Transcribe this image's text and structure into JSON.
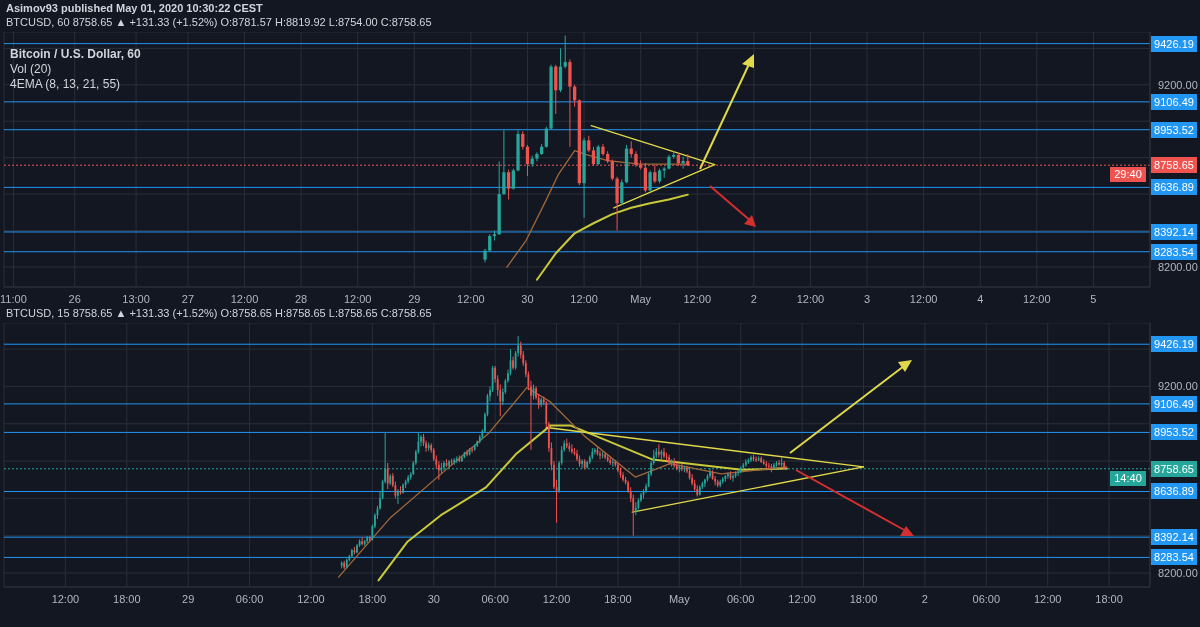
{
  "chart_data": [
    {
      "type": "candlestick",
      "title": "Asimov93 published May 01, 2020 10:30:22 CEST",
      "subtitle": "BTCUSD, 60 8758.65 ▲ +131.33 (+1.52%) O:8781.57 H:8819.92 L:8754.00 C:8758.65",
      "annotations": [
        "Bitcoin / U.S. Dollar, 60",
        "Vol (20)",
        "4EMA (8, 13, 21, 55)",
        "29:40"
      ],
      "x": [
        "2020-04-29T15:00",
        "2020-04-29T16:00",
        "2020-04-29T17:00",
        "2020-04-29T18:00",
        "2020-04-29T19:00",
        "2020-04-29T20:00",
        "2020-04-29T21:00",
        "2020-04-29T22:00",
        "2020-04-29T23:00",
        "2020-04-30T00:00",
        "2020-04-30T01:00",
        "2020-04-30T02:00",
        "2020-04-30T03:00",
        "2020-04-30T04:00",
        "2020-04-30T05:00",
        "2020-04-30T06:00",
        "2020-04-30T07:00",
        "2020-04-30T08:00",
        "2020-04-30T09:00",
        "2020-04-30T10:00",
        "2020-04-30T11:00",
        "2020-04-30T12:00",
        "2020-04-30T13:00",
        "2020-04-30T14:00",
        "2020-04-30T15:00",
        "2020-04-30T16:00",
        "2020-04-30T17:00",
        "2020-04-30T18:00",
        "2020-04-30T19:00",
        "2020-04-30T20:00",
        "2020-04-30T21:00",
        "2020-04-30T22:00",
        "2020-04-30T23:00",
        "2020-05-01T00:00",
        "2020-05-01T01:00",
        "2020-05-01T02:00",
        "2020-05-01T03:00",
        "2020-05-01T04:00",
        "2020-05-01T05:00",
        "2020-05-01T06:00",
        "2020-05-01T07:00",
        "2020-05-01T08:00",
        "2020-05-01T09:00",
        "2020-05-01T10:00"
      ],
      "ohlc": [
        [
          8240,
          8300,
          8225,
          8290
        ],
        [
          8290,
          8380,
          8285,
          8370
        ],
        [
          8370,
          8400,
          8345,
          8380
        ],
        [
          8380,
          8780,
          8375,
          8600
        ],
        [
          8600,
          8950,
          8595,
          8720
        ],
        [
          8720,
          8735,
          8570,
          8630
        ],
        [
          8630,
          8740,
          8625,
          8730
        ],
        [
          8730,
          8950,
          8725,
          8930
        ],
        [
          8930,
          8945,
          8845,
          8860
        ],
        [
          8860,
          8870,
          8700,
          8765
        ],
        [
          8765,
          8812,
          8750,
          8795
        ],
        [
          8795,
          8830,
          8780,
          8820
        ],
        [
          8820,
          8875,
          8815,
          8860
        ],
        [
          8860,
          8970,
          8855,
          8960
        ],
        [
          8960,
          9310,
          8955,
          9300
        ],
        [
          9300,
          9310,
          9040,
          9170
        ],
        [
          9170,
          9400,
          9160,
          9300
        ],
        [
          9300,
          9470,
          9290,
          9325
        ],
        [
          9325,
          9340,
          8860,
          9190
        ],
        [
          9190,
          9200,
          9080,
          9115
        ],
        [
          9115,
          9120,
          8650,
          8660
        ],
        [
          8660,
          8910,
          8470,
          8895
        ],
        [
          8895,
          8920,
          8830,
          8840
        ],
        [
          8840,
          8860,
          8755,
          8765
        ],
        [
          8765,
          8870,
          8760,
          8860
        ],
        [
          8860,
          8875,
          8810,
          8820
        ],
        [
          8820,
          8835,
          8770,
          8780
        ],
        [
          8780,
          8790,
          8675,
          8685
        ],
        [
          8685,
          8695,
          8400,
          8550
        ],
        [
          8550,
          8680,
          8540,
          8665
        ],
        [
          8665,
          8870,
          8660,
          8850
        ],
        [
          8850,
          8890,
          8800,
          8820
        ],
        [
          8820,
          8835,
          8750,
          8760
        ],
        [
          8760,
          8785,
          8735,
          8745
        ],
        [
          8745,
          8770,
          8610,
          8620
        ],
        [
          8620,
          8730,
          8615,
          8720
        ],
        [
          8720,
          8760,
          8660,
          8670
        ],
        [
          8670,
          8740,
          8660,
          8730
        ],
        [
          8730,
          8750,
          8690,
          8740
        ],
        [
          8740,
          8815,
          8735,
          8805
        ],
        [
          8805,
          8835,
          8795,
          8815
        ],
        [
          8815,
          8825,
          8755,
          8770
        ],
        [
          8770,
          8805,
          8740,
          8781.57
        ],
        [
          8781.57,
          8819.92,
          8754,
          8758.65
        ]
      ],
      "series": [
        {
          "type": "line",
          "color": "#c9c93a",
          "x": [
            "2020-04-30T02:00",
            "2020-04-30T06:00",
            "2020-04-30T10:00",
            "2020-04-30T14:00",
            "2020-04-30T18:00",
            "2020-04-30T22:00",
            "2020-05-01T02:00",
            "2020-05-01T06:00",
            "2020-05-01T10:00"
          ],
          "values": [
            8130,
            8275,
            8385,
            8440,
            8490,
            8525,
            8550,
            8570,
            8597
          ]
        },
        {
          "type": "line",
          "color": "#a0683a",
          "x": [
            "2020-04-29T19:36",
            "2020-04-29T23:42",
            "2020-04-30T03:54",
            "2020-04-30T06:36",
            "2020-04-30T10:00",
            "2020-04-30T12:06",
            "2020-04-30T17:00",
            "2020-04-30T23:54",
            "2020-05-01T10:00"
          ],
          "values": [
            8198,
            8345,
            8564,
            8710,
            8839,
            8820,
            8784,
            8765,
            8765
          ]
        },
        {
          "type": "line",
          "color": "#e0d84a",
          "x": [
            "2020-04-30T13:30",
            "2020-05-01T15:42"
          ],
          "values": [
            8976,
            8762
          ]
        },
        {
          "type": "line",
          "color": "#e0d84a",
          "x": [
            "2020-04-30T18:18",
            "2020-05-01T15:42"
          ],
          "values": [
            8524,
            8762
          ]
        }
      ],
      "marker": "none",
      "xlim": [
        "2020-04-25T09:00",
        "2020-05-05T12:00"
      ],
      "xticks": [
        {
          "value": "2020-04-25T11:00",
          "label": "11:00"
        },
        {
          "value": "2020-04-26",
          "label": "26"
        },
        {
          "value": "2020-04-26T13:00",
          "label": "13:00"
        },
        {
          "value": "2020-04-27",
          "label": "27"
        },
        {
          "value": "2020-04-27T12:00",
          "label": "12:00"
        },
        {
          "value": "2020-04-28",
          "label": "28"
        },
        {
          "value": "2020-04-28T12:00",
          "label": "12:00"
        },
        {
          "value": "2020-04-29",
          "label": "29"
        },
        {
          "value": "2020-04-29T12:00",
          "label": "12:00"
        },
        {
          "value": "2020-04-30",
          "label": "30"
        },
        {
          "value": "2020-04-30T12:00",
          "label": "12:00"
        },
        {
          "value": "2020-05-01",
          "label": "May"
        },
        {
          "value": "2020-05-01T12:00",
          "label": "12:00"
        },
        {
          "value": "2020-05-02",
          "label": "2"
        },
        {
          "value": "2020-05-02T12:00",
          "label": "12:00"
        },
        {
          "value": "2020-05-03",
          "label": "3"
        },
        {
          "value": "2020-05-03T12:00",
          "label": "12:00"
        },
        {
          "value": "2020-05-04",
          "label": "4"
        },
        {
          "value": "2020-05-04T12:00",
          "label": "12:00"
        },
        {
          "value": "2020-05-05",
          "label": "5"
        }
      ],
      "ylim": [
        8090,
        9490
      ],
      "yticks": [
        {
          "value": 8200,
          "label": "8200.00"
        },
        {
          "value": 8400,
          "label": null
        },
        {
          "value": 8600,
          "label": null
        },
        {
          "value": 8800,
          "label": null
        },
        {
          "value": 9000,
          "label": null
        },
        {
          "value": 9200,
          "label": "9200.00"
        },
        {
          "value": 9400,
          "label": null
        }
      ],
      "grid": true,
      "ref_lines": [
        {
          "axis": "y",
          "value": 9426.19,
          "label": "9426.19",
          "color": "#2196f3"
        },
        {
          "axis": "y",
          "value": 9106.49,
          "label": "9106.49",
          "color": "#2196f3"
        },
        {
          "axis": "y",
          "value": 8953.52,
          "label": "8953.52",
          "color": "#2196f3"
        },
        {
          "axis": "y",
          "value": 8758.65,
          "label": "8758.65",
          "color": "#ef5350",
          "line_style": "dotted"
        },
        {
          "axis": "y",
          "value": 8636.89,
          "label": "8636.89",
          "color": "#2196f3"
        },
        {
          "axis": "y",
          "value": 8392.14,
          "label": "8392.14",
          "color": "#2196f3"
        },
        {
          "axis": "y",
          "value": 8283.54,
          "label": "8283.54",
          "color": "#2196f3"
        }
      ]
    },
    {
      "type": "candlestick",
      "subtitle": "BTCUSD, 15 8758.65 ▲ +131.33 (+1.52%) O:8758.65 H:8758.65 L:8758.65 C:8758.65",
      "annotations": [
        "14:40"
      ],
      "x": [
        "2020-04-29T15:00",
        "2020-04-29T15:15",
        "2020-04-29T15:30",
        "2020-04-29T15:45",
        "2020-04-29T16:00",
        "2020-04-29T16:15",
        "2020-04-29T16:30",
        "2020-04-29T16:45",
        "2020-04-29T17:00",
        "2020-04-29T17:15",
        "2020-04-29T17:30",
        "2020-04-29T17:45",
        "2020-04-29T18:00",
        "2020-04-29T18:15",
        "2020-04-29T18:30",
        "2020-04-29T18:45",
        "2020-04-29T19:00",
        "2020-04-29T19:15",
        "2020-04-29T19:30",
        "2020-04-29T19:45",
        "2020-04-29T20:00",
        "2020-04-29T20:15",
        "2020-04-29T20:30",
        "2020-04-29T20:45",
        "2020-04-29T21:00",
        "2020-04-29T21:15",
        "2020-04-29T21:30",
        "2020-04-29T21:45",
        "2020-04-29T22:00",
        "2020-04-29T22:15",
        "2020-04-29T22:30",
        "2020-04-29T22:45",
        "2020-04-29T23:00",
        "2020-04-29T23:15",
        "2020-04-29T23:30",
        "2020-04-29T23:45",
        "2020-04-30T00:00",
        "2020-04-30T00:15",
        "2020-04-30T00:30",
        "2020-04-30T00:45",
        "2020-04-30T01:00",
        "2020-04-30T01:15",
        "2020-04-30T01:30",
        "2020-04-30T01:45",
        "2020-04-30T02:00",
        "2020-04-30T02:15",
        "2020-04-30T02:30",
        "2020-04-30T02:45",
        "2020-04-30T03:00",
        "2020-04-30T03:15",
        "2020-04-30T03:30",
        "2020-04-30T03:45",
        "2020-04-30T04:00",
        "2020-04-30T04:15",
        "2020-04-30T04:30",
        "2020-04-30T04:45",
        "2020-04-30T05:00",
        "2020-04-30T05:15",
        "2020-04-30T05:30",
        "2020-04-30T05:45",
        "2020-04-30T06:00",
        "2020-04-30T06:15",
        "2020-04-30T06:30",
        "2020-04-30T06:45",
        "2020-04-30T07:00",
        "2020-04-30T07:15",
        "2020-04-30T07:30",
        "2020-04-30T07:45",
        "2020-04-30T08:00",
        "2020-04-30T08:15",
        "2020-04-30T08:30",
        "2020-04-30T08:45",
        "2020-04-30T09:00",
        "2020-04-30T09:15",
        "2020-04-30T09:30",
        "2020-04-30T09:45",
        "2020-04-30T10:00",
        "2020-04-30T10:15",
        "2020-04-30T10:30",
        "2020-04-30T10:45",
        "2020-04-30T11:00",
        "2020-04-30T11:15",
        "2020-04-30T11:30",
        "2020-04-30T11:45",
        "2020-04-30T12:00",
        "2020-04-30T12:15",
        "2020-04-30T12:30",
        "2020-04-30T12:45",
        "2020-04-30T13:00",
        "2020-04-30T13:15",
        "2020-04-30T13:30",
        "2020-04-30T13:45",
        "2020-04-30T14:00",
        "2020-04-30T14:15",
        "2020-04-30T14:30",
        "2020-04-30T14:45",
        "2020-04-30T15:00",
        "2020-04-30T15:15",
        "2020-04-30T15:30",
        "2020-04-30T15:45",
        "2020-04-30T16:00",
        "2020-04-30T16:15",
        "2020-04-30T16:30",
        "2020-04-30T16:45",
        "2020-04-30T17:00",
        "2020-04-30T17:15",
        "2020-04-30T17:30",
        "2020-04-30T17:45",
        "2020-04-30T18:00",
        "2020-04-30T18:15",
        "2020-04-30T18:30",
        "2020-04-30T18:45",
        "2020-04-30T19:00",
        "2020-04-30T19:15",
        "2020-04-30T19:30",
        "2020-04-30T19:45",
        "2020-04-30T20:00",
        "2020-04-30T20:15",
        "2020-04-30T20:30",
        "2020-04-30T20:45",
        "2020-04-30T21:00",
        "2020-04-30T21:15",
        "2020-04-30T21:30",
        "2020-04-30T21:45",
        "2020-04-30T22:00",
        "2020-04-30T22:15",
        "2020-04-30T22:30",
        "2020-04-30T22:45",
        "2020-04-30T23:00",
        "2020-04-30T23:15",
        "2020-04-30T23:30",
        "2020-04-30T23:45",
        "2020-05-01T00:00",
        "2020-05-01T00:15",
        "2020-05-01T00:30",
        "2020-05-01T00:45",
        "2020-05-01T01:00",
        "2020-05-01T01:15",
        "2020-05-01T01:30",
        "2020-05-01T01:45",
        "2020-05-01T02:00",
        "2020-05-01T02:15",
        "2020-05-01T02:30",
        "2020-05-01T02:45",
        "2020-05-01T03:00",
        "2020-05-01T03:15",
        "2020-05-01T03:30",
        "2020-05-01T03:45",
        "2020-05-01T04:00",
        "2020-05-01T04:15",
        "2020-05-01T04:30",
        "2020-05-01T04:45",
        "2020-05-01T05:00",
        "2020-05-01T05:15",
        "2020-05-01T05:30",
        "2020-05-01T05:45",
        "2020-05-01T06:00",
        "2020-05-01T06:15",
        "2020-05-01T06:30",
        "2020-05-01T06:45",
        "2020-05-01T07:00",
        "2020-05-01T07:15",
        "2020-05-01T07:30",
        "2020-05-01T07:45",
        "2020-05-01T08:00",
        "2020-05-01T08:15",
        "2020-05-01T08:30",
        "2020-05-01T08:45",
        "2020-05-01T09:00",
        "2020-05-01T09:15",
        "2020-05-01T09:30",
        "2020-05-01T09:45",
        "2020-05-01T10:00",
        "2020-05-01T10:15",
        "2020-05-01T10:30"
      ],
      "ohlc": [
        [
          8240,
          8262,
          8225,
          8255
        ],
        [
          8255,
          8265,
          8222,
          8230
        ],
        [
          8230,
          8278,
          8226,
          8270
        ],
        [
          8270,
          8298,
          8262,
          8290
        ],
        [
          8290,
          8330,
          8285,
          8322
        ],
        [
          8322,
          8340,
          8300,
          8310
        ],
        [
          8310,
          8355,
          8305,
          8348
        ],
        [
          8348,
          8380,
          8340,
          8370
        ],
        [
          8370,
          8392,
          8348,
          8355
        ],
        [
          8355,
          8378,
          8345,
          8372
        ],
        [
          8372,
          8398,
          8360,
          8390
        ],
        [
          8390,
          8400,
          8368,
          8380
        ],
        [
          8380,
          8460,
          8375,
          8450
        ],
        [
          8450,
          8520,
          8440,
          8510
        ],
        [
          8510,
          8560,
          8490,
          8545
        ],
        [
          8545,
          8640,
          8540,
          8600
        ],
        [
          8600,
          8700,
          8595,
          8690
        ],
        [
          8690,
          8950,
          8680,
          8760
        ],
        [
          8760,
          8790,
          8650,
          8680
        ],
        [
          8680,
          8730,
          8670,
          8720
        ],
        [
          8720,
          8735,
          8660,
          8670
        ],
        [
          8670,
          8690,
          8600,
          8615
        ],
        [
          8615,
          8650,
          8570,
          8640
        ],
        [
          8640,
          8665,
          8620,
          8630
        ],
        [
          8630,
          8680,
          8625,
          8672
        ],
        [
          8672,
          8700,
          8655,
          8690
        ],
        [
          8690,
          8725,
          8680,
          8712
        ],
        [
          8712,
          8740,
          8700,
          8730
        ],
        [
          8730,
          8800,
          8725,
          8790
        ],
        [
          8790,
          8860,
          8780,
          8850
        ],
        [
          8850,
          8950,
          8840,
          8905
        ],
        [
          8905,
          8940,
          8880,
          8930
        ],
        [
          8930,
          8945,
          8880,
          8895
        ],
        [
          8895,
          8910,
          8850,
          8870
        ],
        [
          8870,
          8900,
          8855,
          8885
        ],
        [
          8885,
          8895,
          8845,
          8860
        ],
        [
          8860,
          8870,
          8800,
          8810
        ],
        [
          8810,
          8830,
          8760,
          8780
        ],
        [
          8780,
          8800,
          8700,
          8750
        ],
        [
          8750,
          8790,
          8735,
          8765
        ],
        [
          8765,
          8800,
          8750,
          8790
        ],
        [
          8790,
          8810,
          8770,
          8775
        ],
        [
          8775,
          8805,
          8765,
          8798
        ],
        [
          8798,
          8812,
          8780,
          8795
        ],
        [
          8795,
          8815,
          8780,
          8805
        ],
        [
          8805,
          8825,
          8790,
          8812
        ],
        [
          8812,
          8830,
          8795,
          8800
        ],
        [
          8800,
          8830,
          8795,
          8820
        ],
        [
          8820,
          8850,
          8815,
          8845
        ],
        [
          8845,
          8860,
          8825,
          8835
        ],
        [
          8835,
          8870,
          8830,
          8862
        ],
        [
          8862,
          8875,
          8845,
          8860
        ],
        [
          8860,
          8890,
          8855,
          8882
        ],
        [
          8882,
          8910,
          8875,
          8905
        ],
        [
          8905,
          8940,
          8895,
          8930
        ],
        [
          8930,
          8970,
          8920,
          8960
        ],
        [
          8960,
          9060,
          8955,
          9050
        ],
        [
          9050,
          9160,
          9040,
          9150
        ],
        [
          9150,
          9200,
          9120,
          9180
        ],
        [
          9180,
          9310,
          9170,
          9300
        ],
        [
          9300,
          9310,
          9220,
          9240
        ],
        [
          9240,
          9260,
          9150,
          9180
        ],
        [
          9180,
          9210,
          9040,
          9120
        ],
        [
          9120,
          9190,
          9100,
          9170
        ],
        [
          9170,
          9240,
          9160,
          9230
        ],
        [
          9230,
          9290,
          9220,
          9270
        ],
        [
          9270,
          9400,
          9260,
          9340
        ],
        [
          9340,
          9360,
          9290,
          9300
        ],
        [
          9300,
          9390,
          9290,
          9380
        ],
        [
          9380,
          9470,
          9360,
          9420
        ],
        [
          9420,
          9440,
          9350,
          9370
        ],
        [
          9370,
          9390,
          9310,
          9325
        ],
        [
          9325,
          9340,
          9250,
          9265
        ],
        [
          9265,
          9280,
          9180,
          9200
        ],
        [
          9200,
          9230,
          8860,
          9150
        ],
        [
          9150,
          9210,
          9130,
          9190
        ],
        [
          9190,
          9200,
          9130,
          9140
        ],
        [
          9140,
          9160,
          9080,
          9100
        ],
        [
          9100,
          9140,
          9090,
          9130
        ],
        [
          9130,
          9145,
          9100,
          9115
        ],
        [
          9115,
          9120,
          8980,
          9000
        ],
        [
          9000,
          9010,
          8850,
          8870
        ],
        [
          8870,
          8900,
          8750,
          8780
        ],
        [
          8780,
          8800,
          8650,
          8660
        ],
        [
          8660,
          8700,
          8470,
          8640
        ],
        [
          8640,
          8800,
          8630,
          8790
        ],
        [
          8790,
          8880,
          8780,
          8860
        ],
        [
          8860,
          8910,
          8850,
          8895
        ],
        [
          8895,
          8920,
          8870,
          8880
        ],
        [
          8880,
          8900,
          8850,
          8865
        ],
        [
          8865,
          8890,
          8840,
          8850
        ],
        [
          8850,
          8870,
          8830,
          8840
        ],
        [
          8840,
          8860,
          8800,
          8810
        ],
        [
          8810,
          8830,
          8770,
          8785
        ],
        [
          8785,
          8810,
          8760,
          8800
        ],
        [
          8800,
          8810,
          8755,
          8765
        ],
        [
          8765,
          8800,
          8760,
          8795
        ],
        [
          8795,
          8830,
          8785,
          8820
        ],
        [
          8820,
          8870,
          8810,
          8850
        ],
        [
          8850,
          8870,
          8835,
          8860
        ],
        [
          8860,
          8875,
          8830,
          8840
        ],
        [
          8840,
          8855,
          8810,
          8830
        ],
        [
          8830,
          8850,
          8815,
          8835
        ],
        [
          8835,
          8845,
          8810,
          8820
        ],
        [
          8820,
          8835,
          8795,
          8805
        ],
        [
          8805,
          8820,
          8780,
          8790
        ],
        [
          8790,
          8810,
          8770,
          8795
        ],
        [
          8795,
          8805,
          8770,
          8780
        ],
        [
          8780,
          8790,
          8740,
          8750
        ],
        [
          8750,
          8765,
          8710,
          8725
        ],
        [
          8725,
          8740,
          8690,
          8700
        ],
        [
          8700,
          8715,
          8675,
          8685
        ],
        [
          8685,
          8695,
          8630,
          8640
        ],
        [
          8640,
          8660,
          8580,
          8600
        ],
        [
          8600,
          8620,
          8400,
          8530
        ],
        [
          8530,
          8580,
          8510,
          8550
        ],
        [
          8550,
          8600,
          8540,
          8590
        ],
        [
          8590,
          8630,
          8580,
          8620
        ],
        [
          8620,
          8650,
          8600,
          8640
        ],
        [
          8640,
          8680,
          8630,
          8665
        ],
        [
          8665,
          8740,
          8660,
          8730
        ],
        [
          8730,
          8800,
          8720,
          8790
        ],
        [
          8790,
          8860,
          8780,
          8830
        ],
        [
          8830,
          8870,
          8815,
          8850
        ],
        [
          8850,
          8890,
          8820,
          8835
        ],
        [
          8835,
          8860,
          8810,
          8850
        ],
        [
          8850,
          8870,
          8815,
          8825
        ],
        [
          8825,
          8845,
          8800,
          8820
        ],
        [
          8820,
          8835,
          8780,
          8790
        ],
        [
          8790,
          8810,
          8770,
          8800
        ],
        [
          8800,
          8815,
          8765,
          8775
        ],
        [
          8775,
          8790,
          8750,
          8760
        ],
        [
          8760,
          8780,
          8740,
          8770
        ],
        [
          8770,
          8785,
          8745,
          8755
        ],
        [
          8755,
          8775,
          8740,
          8765
        ],
        [
          8765,
          8775,
          8735,
          8745
        ],
        [
          8745,
          8770,
          8700,
          8710
        ],
        [
          8710,
          8730,
          8670,
          8680
        ],
        [
          8680,
          8700,
          8640,
          8650
        ],
        [
          8650,
          8670,
          8610,
          8620
        ],
        [
          8620,
          8670,
          8615,
          8660
        ],
        [
          8660,
          8690,
          8650,
          8680
        ],
        [
          8680,
          8705,
          8660,
          8700
        ],
        [
          8700,
          8730,
          8690,
          8720
        ],
        [
          8720,
          8760,
          8710,
          8740
        ],
        [
          8740,
          8750,
          8700,
          8705
        ],
        [
          8705,
          8720,
          8670,
          8690
        ],
        [
          8690,
          8700,
          8660,
          8670
        ],
        [
          8670,
          8700,
          8660,
          8690
        ],
        [
          8690,
          8715,
          8680,
          8705
        ],
        [
          8705,
          8725,
          8690,
          8720
        ],
        [
          8720,
          8740,
          8705,
          8730
        ],
        [
          8730,
          8745,
          8700,
          8710
        ],
        [
          8710,
          8730,
          8690,
          8720
        ],
        [
          8720,
          8745,
          8710,
          8735
        ],
        [
          8735,
          8750,
          8720,
          8740
        ],
        [
          8740,
          8770,
          8735,
          8765
        ],
        [
          8765,
          8790,
          8755,
          8780
        ],
        [
          8780,
          8810,
          8770,
          8795
        ],
        [
          8795,
          8815,
          8785,
          8805
        ],
        [
          8805,
          8830,
          8795,
          8820
        ],
        [
          8820,
          8835,
          8800,
          8810
        ],
        [
          8810,
          8825,
          8795,
          8805
        ],
        [
          8805,
          8825,
          8800,
          8815
        ],
        [
          8815,
          8825,
          8790,
          8795
        ],
        [
          8795,
          8810,
          8780,
          8785
        ],
        [
          8785,
          8800,
          8760,
          8775
        ],
        [
          8775,
          8790,
          8755,
          8770
        ],
        [
          8770,
          8785,
          8740,
          8760
        ],
        [
          8760,
          8790,
          8755,
          8780
        ],
        [
          8780,
          8800,
          8770,
          8790
        ],
        [
          8790,
          8805,
          8775,
          8781.57
        ],
        [
          8781.57,
          8819.92,
          8770,
          8790
        ],
        [
          8790,
          8800,
          8754,
          8758.65
        ],
        [
          8758.65,
          8758.65,
          8758.65,
          8758.65
        ]
      ],
      "series": [
        {
          "type": "line",
          "color": "#c9c93a",
          "x": [
            "2020-04-29T18:36",
            "2020-04-29T21:24",
            "2020-04-30T00:42",
            "2020-04-30T05:06",
            "2020-04-30T08:06",
            "2020-04-30T11:24",
            "2020-04-30T13:24",
            "2020-04-30T21:24",
            "2020-05-01T06:06",
            "2020-05-01T10:30"
          ],
          "values": [
            8160,
            8366,
            8510,
            8659,
            8841,
            8990,
            8990,
            8808,
            8753,
            8760
          ]
        },
        {
          "type": "line",
          "color": "#a0683a",
          "x": [
            "2020-04-29T14:42",
            "2020-04-29T19:42",
            "2020-04-30T00:42",
            "2020-04-30T05:24",
            "2020-04-30T09:06",
            "2020-04-30T11:24",
            "2020-04-30T14:42",
            "2020-04-30T19:42",
            "2020-04-30T23:06",
            "2020-05-01T04:06",
            "2020-05-01T10:30"
          ],
          "values": [
            8178,
            8493,
            8730,
            8951,
            9194,
            9117,
            8935,
            8714,
            8786,
            8731,
            8769
          ]
        },
        {
          "type": "line",
          "color": "#e0d84a",
          "x": [
            "2020-04-30T11:00",
            "2020-05-01T18:00"
          ],
          "values": [
            8980,
            8769
          ]
        },
        {
          "type": "line",
          "color": "#e0d84a",
          "x": [
            "2020-04-30T19:24",
            "2020-05-01T18:00"
          ],
          "values": [
            8526,
            8769
          ]
        }
      ],
      "marker": "none",
      "xlim": [
        "2020-04-28T06:00",
        "2020-05-02T22:00"
      ],
      "xticks": [
        {
          "value": "2020-04-28T12:00",
          "label": "12:00"
        },
        {
          "value": "2020-04-28T18:00",
          "label": "18:00"
        },
        {
          "value": "2020-04-29",
          "label": "29"
        },
        {
          "value": "2020-04-29T06:00",
          "label": "06:00"
        },
        {
          "value": "2020-04-29T12:00",
          "label": "12:00"
        },
        {
          "value": "2020-04-29T18:00",
          "label": "18:00"
        },
        {
          "value": "2020-04-30",
          "label": "30"
        },
        {
          "value": "2020-04-30T06:00",
          "label": "06:00"
        },
        {
          "value": "2020-04-30T12:00",
          "label": "12:00"
        },
        {
          "value": "2020-04-30T18:00",
          "label": "18:00"
        },
        {
          "value": "2020-05-01",
          "label": "May"
        },
        {
          "value": "2020-05-01T06:00",
          "label": "06:00"
        },
        {
          "value": "2020-05-01T12:00",
          "label": "12:00"
        },
        {
          "value": "2020-05-01T18:00",
          "label": "18:00"
        },
        {
          "value": "2020-05-02",
          "label": "2"
        },
        {
          "value": "2020-05-02T06:00",
          "label": "06:00"
        },
        {
          "value": "2020-05-02T12:00",
          "label": "12:00"
        },
        {
          "value": "2020-05-02T18:00",
          "label": "18:00"
        }
      ],
      "ylim": [
        8125,
        9540
      ],
      "yticks": [
        {
          "value": 8200,
          "label": "8200.00"
        },
        {
          "value": 8400,
          "label": null
        },
        {
          "value": 8600,
          "label": null
        },
        {
          "value": 8800,
          "label": null
        },
        {
          "value": 9000,
          "label": null
        },
        {
          "value": 9200,
          "label": "9200.00"
        },
        {
          "value": 9400,
          "label": null
        }
      ],
      "grid": true,
      "ref_lines": [
        {
          "axis": "y",
          "value": 9426.19,
          "label": "9426.19",
          "color": "#2196f3"
        },
        {
          "axis": "y",
          "value": 9106.49,
          "label": "9106.49",
          "color": "#2196f3"
        },
        {
          "axis": "y",
          "value": 8953.52,
          "label": "8953.52",
          "color": "#2196f3"
        },
        {
          "axis": "y",
          "value": 8758.65,
          "label": "8758.65",
          "color": "#26a69a",
          "line_style": "dotted"
        },
        {
          "axis": "y",
          "value": 8636.89,
          "label": "8636.89",
          "color": "#2196f3"
        },
        {
          "axis": "y",
          "value": 8392.14,
          "label": "8392.14",
          "color": "#2196f3"
        },
        {
          "axis": "y",
          "value": 8283.54,
          "label": "8283.54",
          "color": "#2196f3"
        }
      ]
    }
  ]
}
